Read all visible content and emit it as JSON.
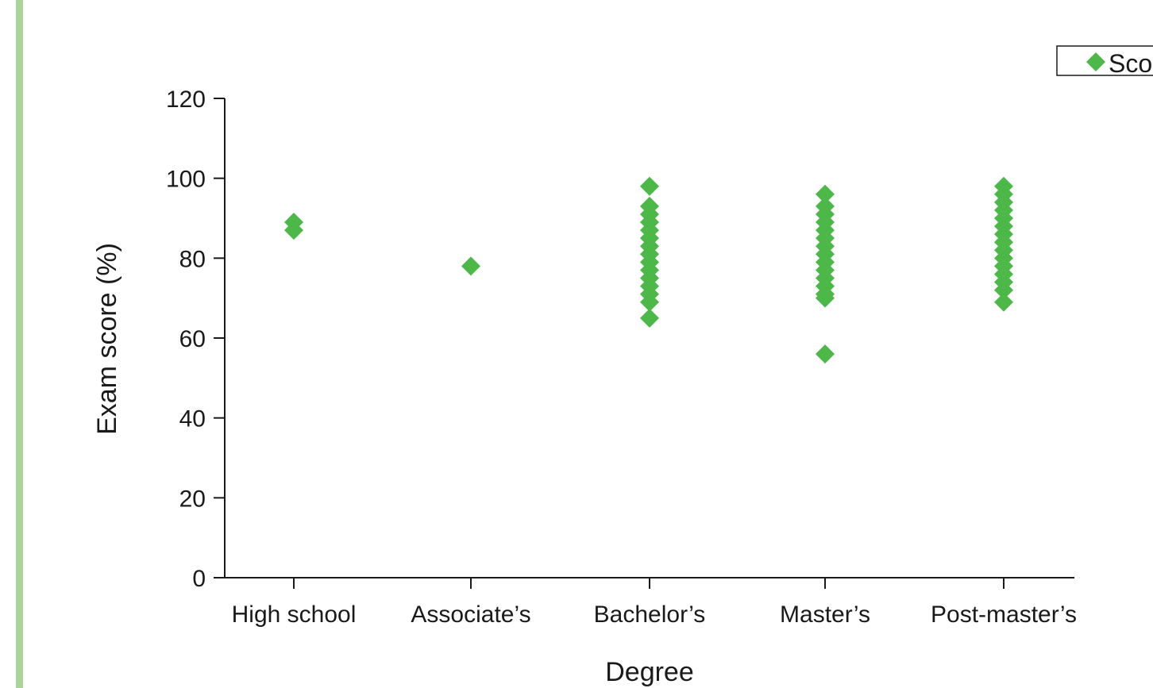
{
  "colors": {
    "marker": "#4cb848",
    "accent_bar": "#a9d49b",
    "axis": "#1a1a1a"
  },
  "chart_data": {
    "type": "scatter",
    "title": "",
    "xlabel": "Degree",
    "ylabel": "Exam score (%)",
    "categories": [
      "High school",
      "Associate’s",
      "Bachelor’s",
      "Master’s",
      "Post-master’s"
    ],
    "ylim": [
      0,
      120
    ],
    "yticks": [
      0,
      20,
      40,
      60,
      80,
      100,
      120
    ],
    "grid": false,
    "legend_position": "top-right",
    "series": [
      {
        "name": "Sco",
        "marker": "diamond",
        "points": [
          {
            "x": "High school",
            "y": 89
          },
          {
            "x": "High school",
            "y": 87
          },
          {
            "x": "Associate’s",
            "y": 78
          },
          {
            "x": "Bachelor’s",
            "y": 98
          },
          {
            "x": "Bachelor’s",
            "y": 93
          },
          {
            "x": "Bachelor’s",
            "y": 91
          },
          {
            "x": "Bachelor’s",
            "y": 89
          },
          {
            "x": "Bachelor’s",
            "y": 87
          },
          {
            "x": "Bachelor’s",
            "y": 85
          },
          {
            "x": "Bachelor’s",
            "y": 83
          },
          {
            "x": "Bachelor’s",
            "y": 81
          },
          {
            "x": "Bachelor’s",
            "y": 79
          },
          {
            "x": "Bachelor’s",
            "y": 77
          },
          {
            "x": "Bachelor’s",
            "y": 75
          },
          {
            "x": "Bachelor’s",
            "y": 73
          },
          {
            "x": "Bachelor’s",
            "y": 71
          },
          {
            "x": "Bachelor’s",
            "y": 69
          },
          {
            "x": "Bachelor’s",
            "y": 65
          },
          {
            "x": "Master’s",
            "y": 96
          },
          {
            "x": "Master’s",
            "y": 93
          },
          {
            "x": "Master’s",
            "y": 91
          },
          {
            "x": "Master’s",
            "y": 89
          },
          {
            "x": "Master’s",
            "y": 87
          },
          {
            "x": "Master’s",
            "y": 85
          },
          {
            "x": "Master’s",
            "y": 83
          },
          {
            "x": "Master’s",
            "y": 81
          },
          {
            "x": "Master’s",
            "y": 79
          },
          {
            "x": "Master’s",
            "y": 77
          },
          {
            "x": "Master’s",
            "y": 75
          },
          {
            "x": "Master’s",
            "y": 73
          },
          {
            "x": "Master’s",
            "y": 71
          },
          {
            "x": "Master’s",
            "y": 70
          },
          {
            "x": "Master’s",
            "y": 56
          },
          {
            "x": "Post-master’s",
            "y": 98
          },
          {
            "x": "Post-master’s",
            "y": 96
          },
          {
            "x": "Post-master’s",
            "y": 94
          },
          {
            "x": "Post-master’s",
            "y": 92
          },
          {
            "x": "Post-master’s",
            "y": 90
          },
          {
            "x": "Post-master’s",
            "y": 88
          },
          {
            "x": "Post-master’s",
            "y": 86
          },
          {
            "x": "Post-master’s",
            "y": 84
          },
          {
            "x": "Post-master’s",
            "y": 82
          },
          {
            "x": "Post-master’s",
            "y": 80
          },
          {
            "x": "Post-master’s",
            "y": 78
          },
          {
            "x": "Post-master’s",
            "y": 76
          },
          {
            "x": "Post-master’s",
            "y": 74
          },
          {
            "x": "Post-master’s",
            "y": 72
          },
          {
            "x": "Post-master’s",
            "y": 69
          }
        ]
      }
    ]
  }
}
